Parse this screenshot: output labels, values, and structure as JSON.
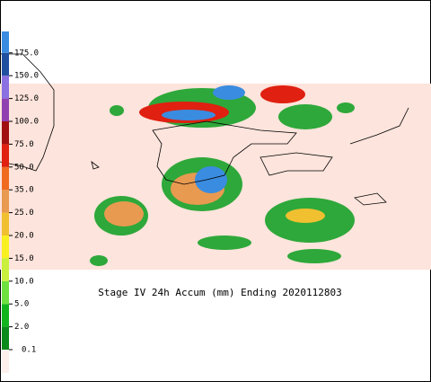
{
  "title": "Stage IV 24h Accum (mm) Ending 2020112803",
  "legend": {
    "ticks": [
      0.1,
      {
        "value": 2,
        "label": "2.0"
      },
      {
        "value": 5,
        "label": "5.0"
      },
      {
        "value": 10,
        "label": "10.0"
      },
      {
        "value": 15,
        "label": "15.0"
      },
      {
        "value": 20,
        "label": "20.0"
      },
      {
        "value": 25,
        "label": "25.0"
      },
      {
        "value": 35,
        "label": "35.0"
      },
      {
        "value": 50,
        "label": "50.0"
      },
      {
        "value": 75,
        "label": "75.0"
      },
      {
        "value": 100,
        "label": "100.0"
      },
      {
        "value": 125,
        "label": "125.0"
      },
      {
        "value": 150,
        "label": "150.0"
      },
      {
        "value": 175,
        "label": "175.0"
      }
    ],
    "colors": [
      "#fdf0ec",
      "#0a8a1a",
      "#12b41e",
      "#6ee040",
      "#c8f03c",
      "#f8f020",
      "#f0c030",
      "#e89a50",
      "#f06a20",
      "#e02010",
      "#a01010",
      "#9040b0",
      "#8a70e0",
      "#2050a0",
      "#3a8ce0"
    ]
  }
}
